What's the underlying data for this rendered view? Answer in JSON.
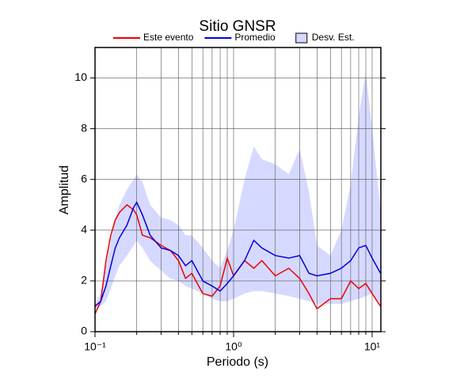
{
  "chart_data": {
    "type": "line",
    "title": "Sitio GNSR",
    "xlabel": "Periodo (s)",
    "ylabel": "Amplitud",
    "x": [
      0.1,
      0.11,
      0.12,
      0.13,
      0.14,
      0.15,
      0.17,
      0.19,
      0.2,
      0.22,
      0.25,
      0.3,
      0.35,
      0.4,
      0.45,
      0.5,
      0.6,
      0.7,
      0.8,
      0.9,
      1.0,
      1.2,
      1.4,
      1.6,
      2.0,
      2.5,
      3,
      3.5,
      4,
      5,
      6,
      7,
      8,
      9,
      10,
      11.5
    ],
    "series": [
      {
        "name": "Este evento",
        "color": "#ee0000",
        "values": [
          0.7,
          1.2,
          2.8,
          3.8,
          4.4,
          4.7,
          5.0,
          4.8,
          4.6,
          3.8,
          3.7,
          3.4,
          3.2,
          2.8,
          2.1,
          2.3,
          1.5,
          1.4,
          1.8,
          2.9,
          2.2,
          2.8,
          2.5,
          2.8,
          2.2,
          2.5,
          2.1,
          1.5,
          0.9,
          1.3,
          1.3,
          2.0,
          1.7,
          1.9,
          1.5,
          1.0
        ]
      },
      {
        "name": "Promedio",
        "color": "#0000dd",
        "values": [
          1.0,
          1.2,
          1.8,
          2.6,
          3.3,
          3.7,
          4.2,
          4.9,
          5.1,
          4.6,
          3.8,
          3.3,
          3.2,
          3.0,
          2.6,
          2.8,
          2.0,
          1.8,
          1.6,
          1.9,
          2.2,
          2.8,
          3.6,
          3.3,
          3.0,
          2.9,
          3.0,
          2.3,
          2.2,
          2.3,
          2.5,
          2.8,
          3.3,
          3.4,
          2.9,
          2.3
        ]
      }
    ],
    "band": {
      "name": "Desv. Est.",
      "color": "#d6d9ff",
      "lower": [
        0.9,
        1.0,
        1.2,
        1.7,
        2.2,
        2.6,
        3.0,
        3.4,
        3.6,
        3.3,
        2.8,
        2.4,
        2.1,
        2.0,
        1.8,
        1.7,
        1.5,
        1.3,
        1.2,
        1.2,
        1.3,
        1.5,
        1.6,
        1.6,
        1.5,
        1.4,
        1.3,
        1.2,
        1.1,
        1.1,
        1.1,
        1.2,
        1.3,
        1.4,
        1.5,
        1.1
      ],
      "upper": [
        1.1,
        1.5,
        2.6,
        3.6,
        4.4,
        5.0,
        5.6,
        6.0,
        6.2,
        5.9,
        5.0,
        4.5,
        4.4,
        4.2,
        3.8,
        3.8,
        3.3,
        2.8,
        2.5,
        3.2,
        4.0,
        6.0,
        7.3,
        6.8,
        6.6,
        6.2,
        7.2,
        5.5,
        3.4,
        3.0,
        4.0,
        5.8,
        8.5,
        10.2,
        8.0,
        4.8
      ]
    },
    "xscale": "log",
    "xlim": [
      0.1,
      11.56
    ],
    "ylim": [
      0,
      11.2
    ],
    "xticks": [
      {
        "value": 0.1,
        "label": "10⁻¹"
      },
      {
        "value": 1,
        "label": "10⁰"
      },
      {
        "value": 10,
        "label": "10¹"
      }
    ],
    "xgrid": [
      0.2,
      0.3,
      0.4,
      0.5,
      0.6,
      0.7,
      0.8,
      0.9,
      2,
      3,
      4,
      5,
      6,
      7,
      8,
      9
    ],
    "yticks": [
      0,
      2,
      4,
      6,
      8,
      10
    ],
    "grid": true,
    "legend": "top"
  }
}
